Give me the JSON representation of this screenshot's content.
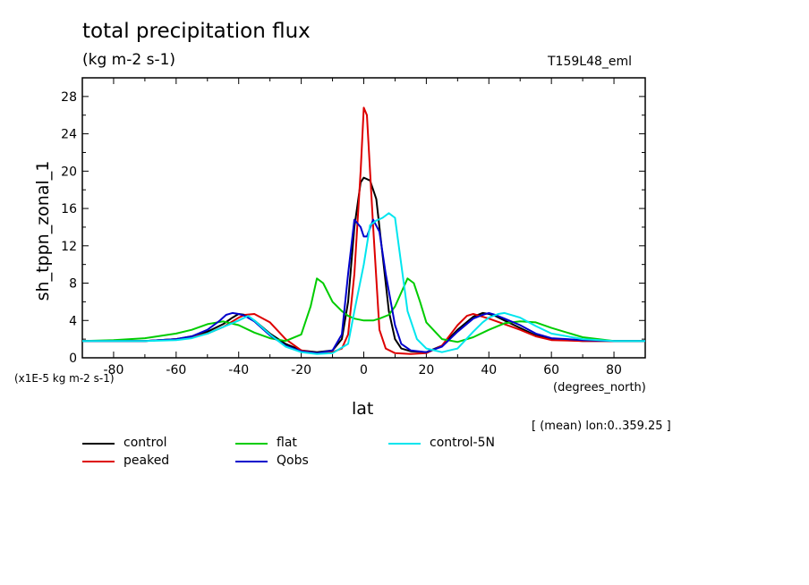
{
  "header": {
    "title": "total precipitation flux",
    "units": "(kg m-2 s-1)",
    "run": "T159L48_eml"
  },
  "footer": {
    "scale_note": "(x1E-5 kg m-2 s-1)",
    "x_unit": "(degrees_north)",
    "lon_note": "[ (mean) lon:0..359.25 ]"
  },
  "chart_data": {
    "type": "line",
    "title": "total precipitation flux",
    "subtitle": "(kg m-2 s-1)",
    "xlabel": "lat",
    "ylabel": "sh_tppn_zonal_1",
    "xlim": [
      -90,
      90
    ],
    "ylim": [
      0,
      30
    ],
    "xticks": [
      -80,
      -60,
      -40,
      -20,
      0,
      20,
      40,
      60,
      80
    ],
    "yticks": [
      0,
      4,
      8,
      12,
      16,
      20,
      24,
      28
    ],
    "grid": false,
    "legend_position": "bottom",
    "series": [
      {
        "name": "control",
        "color": "#000000",
        "x": [
          -90,
          -80,
          -70,
          -60,
          -55,
          -50,
          -45,
          -42,
          -40,
          -38,
          -35,
          -30,
          -25,
          -20,
          -15,
          -10,
          -7,
          -5,
          -3,
          -1,
          0,
          2,
          4,
          6,
          8,
          10,
          12,
          15,
          20,
          25,
          30,
          35,
          38,
          40,
          42,
          45,
          50,
          55,
          60,
          70,
          80,
          90
        ],
        "y": [
          1.8,
          1.8,
          1.8,
          2.0,
          2.3,
          2.8,
          3.6,
          4.3,
          4.7,
          4.6,
          4.0,
          2.6,
          1.5,
          0.8,
          0.6,
          0.8,
          2.0,
          6.0,
          14.0,
          18.8,
          19.3,
          19.0,
          17.0,
          11.0,
          5.0,
          2.0,
          1.0,
          0.7,
          0.6,
          1.3,
          3.0,
          4.4,
          4.8,
          4.7,
          4.5,
          4.0,
          3.2,
          2.4,
          2.0,
          1.8,
          1.8,
          1.8
        ]
      },
      {
        "name": "peaked",
        "color": "#dd0000",
        "x": [
          -90,
          -80,
          -70,
          -60,
          -55,
          -50,
          -45,
          -42,
          -40,
          -38,
          -35,
          -30,
          -25,
          -20,
          -15,
          -10,
          -7,
          -5,
          -3,
          -1,
          0,
          1,
          3,
          5,
          7,
          10,
          15,
          20,
          25,
          30,
          33,
          35,
          38,
          40,
          45,
          50,
          55,
          60,
          70,
          80,
          90
        ],
        "y": [
          1.8,
          1.8,
          1.8,
          2.0,
          2.2,
          2.6,
          3.3,
          3.9,
          4.3,
          4.6,
          4.7,
          3.8,
          2.0,
          0.8,
          0.5,
          0.6,
          1.0,
          2.5,
          9.0,
          20.0,
          26.8,
          26.0,
          14.0,
          3.0,
          1.0,
          0.5,
          0.4,
          0.5,
          1.3,
          3.5,
          4.5,
          4.7,
          4.4,
          4.2,
          3.6,
          3.0,
          2.3,
          1.9,
          1.8,
          1.8,
          1.8
        ]
      },
      {
        "name": "flat",
        "color": "#00cc00",
        "x": [
          -90,
          -80,
          -70,
          -60,
          -55,
          -50,
          -45,
          -40,
          -35,
          -30,
          -25,
          -20,
          -17,
          -15,
          -13,
          -10,
          -7,
          -5,
          -3,
          0,
          3,
          5,
          8,
          10,
          12,
          14,
          16,
          18,
          20,
          25,
          30,
          35,
          40,
          45,
          50,
          55,
          60,
          70,
          80,
          90
        ],
        "y": [
          1.8,
          1.9,
          2.1,
          2.6,
          3.0,
          3.6,
          3.9,
          3.5,
          2.7,
          2.1,
          1.8,
          2.5,
          5.5,
          8.5,
          8.0,
          6.0,
          5.0,
          4.5,
          4.2,
          4.0,
          4.0,
          4.2,
          4.6,
          5.5,
          7.0,
          8.5,
          8.0,
          6.0,
          3.8,
          2.0,
          1.7,
          2.2,
          3.0,
          3.7,
          3.9,
          3.8,
          3.2,
          2.2,
          1.8,
          1.8
        ]
      },
      {
        "name": "Qobs",
        "color": "#0000cc",
        "x": [
          -90,
          -80,
          -70,
          -60,
          -55,
          -50,
          -46,
          -44,
          -42,
          -40,
          -38,
          -35,
          -30,
          -25,
          -20,
          -15,
          -10,
          -7,
          -5,
          -3,
          -1,
          0,
          1,
          3,
          5,
          7,
          10,
          12,
          15,
          20,
          25,
          30,
          35,
          38,
          40,
          42,
          45,
          50,
          55,
          60,
          70,
          80,
          90
        ],
        "y": [
          1.8,
          1.8,
          1.8,
          2.0,
          2.3,
          3.0,
          4.0,
          4.6,
          4.8,
          4.7,
          4.5,
          3.9,
          2.4,
          1.3,
          0.7,
          0.5,
          0.8,
          2.5,
          9.0,
          14.8,
          14.0,
          13.0,
          13.0,
          14.8,
          13.5,
          9.0,
          3.5,
          1.5,
          0.8,
          0.6,
          1.2,
          2.8,
          4.2,
          4.6,
          4.8,
          4.6,
          4.2,
          3.5,
          2.6,
          2.1,
          1.9,
          1.8,
          1.8
        ]
      },
      {
        "name": "control-5N",
        "color": "#00e5ee",
        "x": [
          -90,
          -80,
          -70,
          -60,
          -55,
          -50,
          -45,
          -40,
          -37,
          -35,
          -30,
          -25,
          -20,
          -15,
          -10,
          -5,
          -3,
          0,
          2,
          4,
          6,
          8,
          10,
          12,
          14,
          17,
          20,
          25,
          30,
          35,
          38,
          40,
          43,
          45,
          50,
          55,
          60,
          70,
          80,
          90
        ],
        "y": [
          1.8,
          1.8,
          1.8,
          1.9,
          2.1,
          2.6,
          3.3,
          4.0,
          4.5,
          4.0,
          2.5,
          1.2,
          0.6,
          0.4,
          0.5,
          1.5,
          5.0,
          10.0,
          14.2,
          14.7,
          15.0,
          15.5,
          15.0,
          10.0,
          5.0,
          2.0,
          1.0,
          0.6,
          1.0,
          2.8,
          3.8,
          4.3,
          4.7,
          4.8,
          4.3,
          3.4,
          2.6,
          2.0,
          1.8,
          1.8
        ]
      }
    ]
  }
}
